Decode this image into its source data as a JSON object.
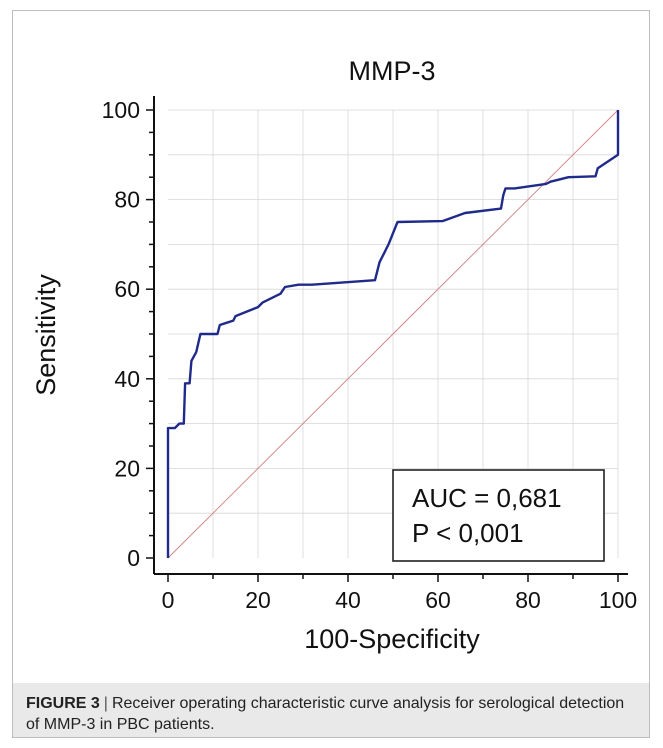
{
  "chart_data": {
    "type": "line",
    "title": "MMP-3",
    "xlabel": "100-Specificity",
    "ylabel": "Sensitivity",
    "xlim": [
      0,
      100
    ],
    "ylim": [
      0,
      100
    ],
    "xticks": [
      "0",
      "20",
      "40",
      "60",
      "80",
      "100"
    ],
    "yticks": [
      "0",
      "20",
      "40",
      "60",
      "80",
      "100"
    ],
    "grid": true,
    "series": [
      {
        "color": "#1f2a8a",
        "x": [
          0,
          0,
          1.5,
          2.5,
          3.5,
          3.8,
          4.8,
          5.2,
          6.3,
          7.2,
          11,
          11.5,
          13,
          14.5,
          15,
          20,
          21,
          25,
          26,
          29,
          32,
          46,
          47,
          48,
          49,
          51,
          61,
          66,
          74,
          74.5,
          75,
          77,
          84,
          85,
          89,
          95,
          95.5,
          100,
          100
        ],
        "y": [
          0,
          29,
          29,
          30,
          30,
          39,
          39,
          44,
          46,
          50,
          50,
          52,
          52.5,
          53,
          54,
          56,
          57,
          59,
          60.5,
          61,
          61,
          62,
          66,
          68,
          70,
          75,
          75.2,
          77,
          78,
          81,
          82.5,
          82.5,
          83.5,
          84,
          85,
          85.2,
          87,
          90,
          100
        ]
      }
    ],
    "reference_line": {
      "x": [
        0,
        100
      ],
      "y": [
        0,
        100
      ],
      "color": "#d08080"
    },
    "annotation": {
      "lines": [
        "AUC = 0,681",
        "P < 0,001"
      ],
      "placement": "bottom-right"
    }
  },
  "caption": {
    "label": "FIGURE 3",
    "separator": "|",
    "text": "Receiver operating characteristic curve analysis for serological detection of MMP-3 in PBC patients."
  }
}
